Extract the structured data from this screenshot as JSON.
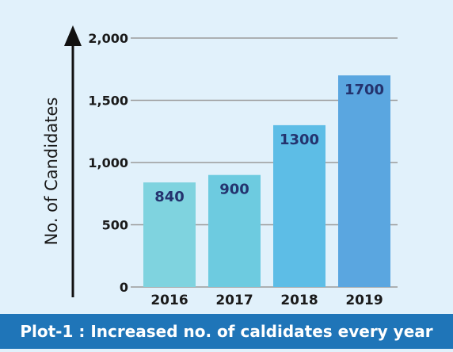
{
  "chart_data": {
    "type": "bar",
    "categories": [
      "2016",
      "2017",
      "2018",
      "2019"
    ],
    "values": [
      840,
      900,
      1300,
      1700
    ],
    "data_labels": [
      "840",
      "900",
      "1300",
      "1700"
    ],
    "xlabel": "",
    "ylabel": "No. of Candidates",
    "ylim": [
      0,
      2000
    ],
    "yticks": [
      0,
      500,
      1000,
      1500,
      2000
    ],
    "ytick_labels": [
      "0",
      "500",
      "1,000",
      "1,500",
      "2,000"
    ],
    "grid": true,
    "bar_colors": [
      "#7fd3df",
      "#6dcbe0",
      "#5dbde6",
      "#5aa6e0"
    ]
  },
  "caption": "Plot-1 : Increased no. of caldidates every year",
  "colors": {
    "background": "#e1f1fb",
    "caption_bar": "#1f75b8",
    "gridline": "#9a9a9a",
    "data_label": "#24336e"
  }
}
